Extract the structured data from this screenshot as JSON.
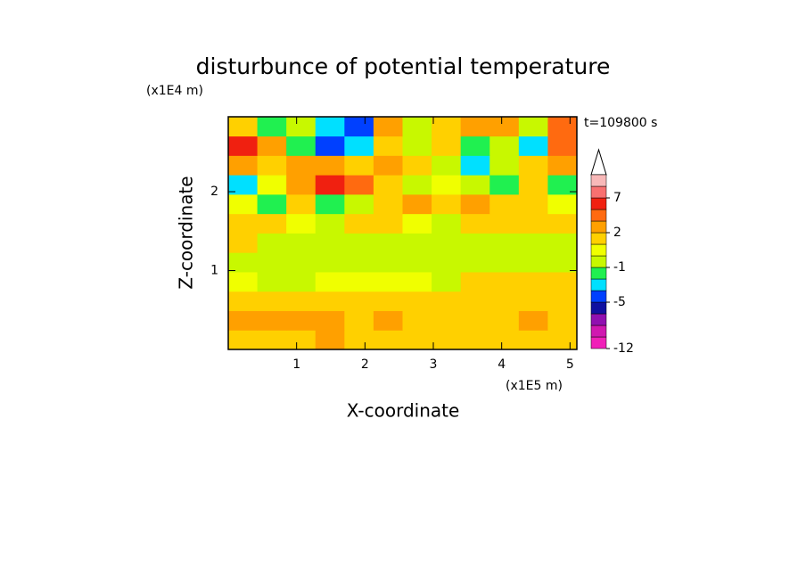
{
  "chart_data": {
    "type": "contour",
    "title": "disturbunce of potential temperature",
    "x_label": "X-coordinate",
    "y_label": "Z-coordinate",
    "x_unit": "(x1E5 m)",
    "y_unit": "(x1E4 m)",
    "time_label": "t=109800 s",
    "xlim": [
      0,
      5.1
    ],
    "ylim": [
      0,
      2.95
    ],
    "xticks": [
      1,
      2,
      3,
      4,
      5
    ],
    "yticks": [
      1,
      2
    ],
    "x": [
      0.2125,
      0.6375,
      1.0625,
      1.4875,
      1.9125,
      2.3375,
      2.7625,
      3.1875,
      3.6125,
      4.0375,
      4.4625,
      4.8875
    ],
    "y": [
      0.123,
      0.369,
      0.615,
      0.861,
      1.107,
      1.353,
      1.599,
      1.845,
      2.091,
      2.337,
      2.583,
      2.829
    ],
    "values": [
      [
        1.5,
        1.5,
        1.5,
        2.5,
        1.5,
        1.5,
        1.5,
        1.5,
        1.5,
        1.5,
        1.5,
        1.5
      ],
      [
        2.5,
        2.5,
        2.5,
        2.5,
        1.5,
        2.5,
        1.5,
        1.5,
        1.5,
        1.5,
        2.5,
        1.5
      ],
      [
        1.5,
        1.5,
        1.5,
        1.5,
        1.5,
        1.5,
        1.5,
        1.5,
        1.5,
        1.5,
        1.5,
        1.5
      ],
      [
        0.5,
        -0.5,
        -0.5,
        0.5,
        0.5,
        0.5,
        0.5,
        -0.5,
        1.5,
        1.5,
        1.5,
        1.5
      ],
      [
        -0.5,
        -0.5,
        -0.5,
        -0.5,
        -0.5,
        -0.5,
        -0.5,
        -0.5,
        -0.5,
        -0.5,
        -0.5,
        -0.5
      ],
      [
        1.5,
        -0.5,
        -0.5,
        -0.5,
        -0.5,
        -0.5,
        -0.5,
        -0.5,
        -0.5,
        -0.5,
        -0.5,
        -0.5
      ],
      [
        1.5,
        1.5,
        0.5,
        -0.5,
        1.5,
        1.5,
        0.5,
        -0.5,
        1.5,
        1.5,
        1.5,
        1.5
      ],
      [
        0.5,
        -1.5,
        1.5,
        -1.5,
        -0.5,
        1.5,
        2.5,
        1.5,
        2.5,
        1.5,
        1.5,
        0.5
      ],
      [
        -3,
        0.5,
        2.5,
        6,
        4,
        1.5,
        -0.5,
        0.5,
        -0.5,
        -1.5,
        1.5,
        -1.5
      ],
      [
        2.5,
        1.5,
        2.5,
        2.5,
        1.5,
        2.5,
        1.5,
        -0.5,
        -3,
        -0.5,
        1.5,
        2.5
      ],
      [
        6,
        2.5,
        -1.5,
        -4.5,
        -3,
        1.5,
        -0.5,
        1.5,
        -1.5,
        -0.5,
        -3,
        4
      ],
      [
        1.5,
        -1.5,
        -0.5,
        -3,
        -4.5,
        2.5,
        -0.5,
        1.5,
        2.5,
        2.5,
        -0.5,
        4
      ]
    ],
    "levels": [
      -12,
      -10,
      -8,
      -6,
      -5,
      -4,
      -2,
      -1,
      0,
      1,
      2,
      3,
      5,
      7,
      9,
      11
    ],
    "colors": [
      "#f020b8",
      "#d018b0",
      "#9010b0",
      "#1010a0",
      "#0040ff",
      "#00e0ff",
      "#20f050",
      "#c8f800",
      "#f0ff00",
      "#ffd000",
      "#ffa000",
      "#ff6a10",
      "#f02010",
      "#f87070",
      "#f8b8b8"
    ],
    "colorbar_ticks": [
      -12,
      -5,
      -1,
      2,
      7
    ]
  }
}
